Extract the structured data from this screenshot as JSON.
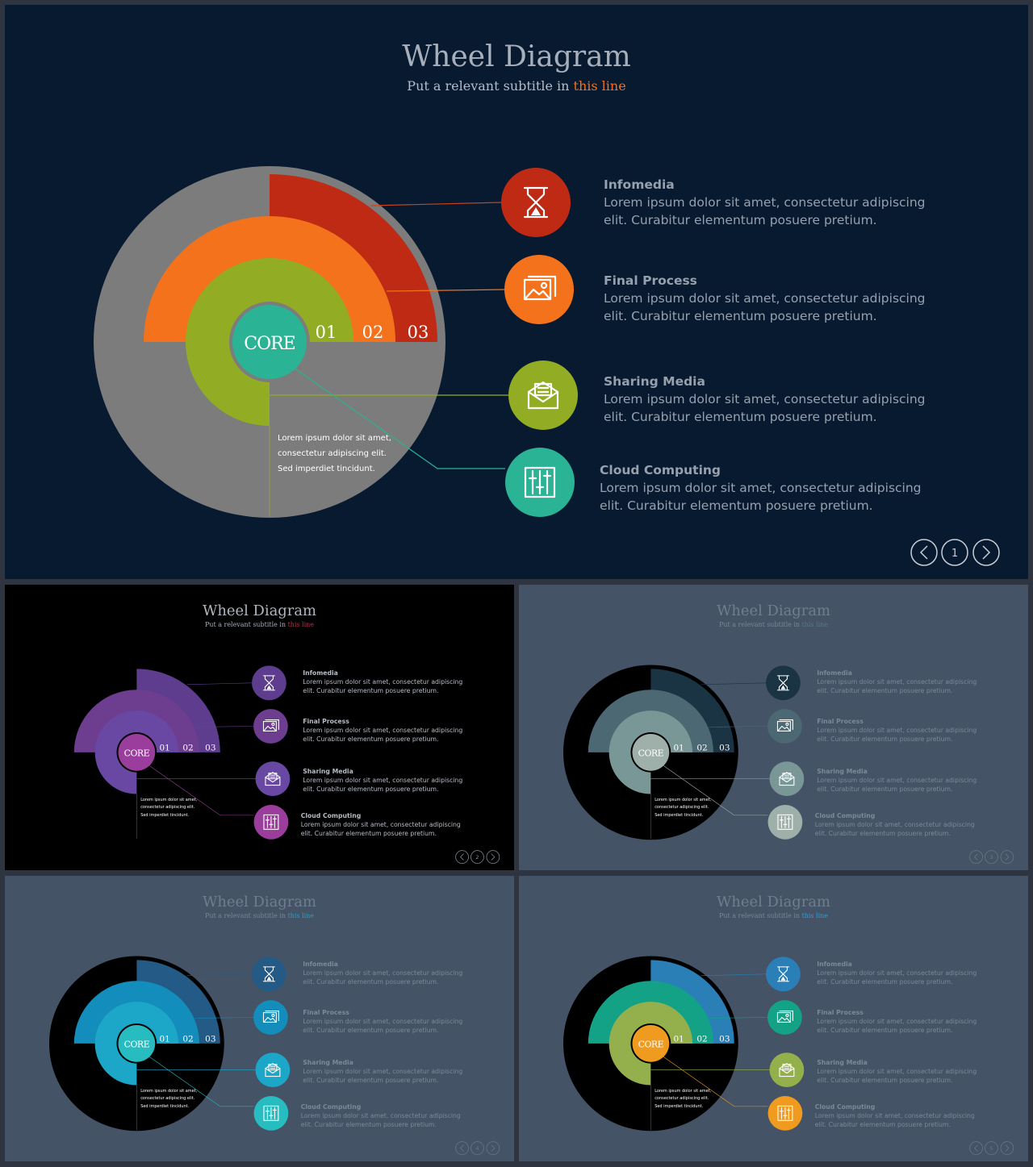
{
  "title": "Wheel Diagram",
  "subtitle_prefix": "Put a relevant subtitle in",
  "subtitle_highlight": "this line",
  "core_label": "CORE",
  "ring_numbers": [
    "01",
    "02",
    "03"
  ],
  "center_text": [
    "Lorem ipsum dolor sit amet,",
    "consectetur adipiscing elit.",
    "Sed imperdiet tincidunt."
  ],
  "items": [
    {
      "title": "Infomedia",
      "desc1": "Lorem ipsum dolor sit amet, consectetur adipiscing",
      "desc2": "elit. Curabitur elementum posuere pretium.",
      "icon": "hourglass-icon"
    },
    {
      "title": "Final Process",
      "desc1": "Lorem ipsum dolor sit amet, consectetur adipiscing",
      "desc2": "elit. Curabitur elementum posuere pretium.",
      "icon": "image-icon"
    },
    {
      "title": "Sharing Media",
      "desc1": "Lorem ipsum dolor sit amet, consectetur adipiscing",
      "desc2": "elit. Curabitur elementum posuere pretium.",
      "icon": "envelope-icon"
    },
    {
      "title": "Cloud Computing",
      "desc1": "Lorem ipsum dolor sit amet, consectetur adipiscing",
      "desc2": "elit. Curabitur elementum posuere pretium.",
      "icon": "sliders-icon"
    }
  ],
  "slides": [
    {
      "page": "1",
      "bg": "#081a30",
      "disk": "#7c7c7c",
      "ring_border": "#7c7c7c",
      "colors": [
        "#bf2a14",
        "#f4721b",
        "#92ac23",
        "#2ab394"
      ],
      "title_color": "#a6afbb",
      "sub_color": "#b6bcc7",
      "highlight_color": "#f2701e",
      "text_color": "#97a1ad",
      "nav_color": "#c9ced6"
    },
    {
      "page": "2",
      "bg": "#000000",
      "disk": "#000000",
      "ring_border": "#000000",
      "colors": [
        "#5e3d8e",
        "#6d3e90",
        "#6948a4",
        "#9a3d9c"
      ],
      "title_color": "#b0b6bf",
      "sub_color": "#a6adb6",
      "highlight_color": "#b2344a",
      "text_color": "#b6bcc5",
      "nav_color": "#8a9099"
    },
    {
      "page": "3",
      "bg": "#455366",
      "disk": "#000000",
      "ring_border": "#000000",
      "colors": [
        "#1b3444",
        "#4b6873",
        "#7a9797",
        "#9eb0a9"
      ],
      "title_color": "#707d8d",
      "sub_color": "#7a8696",
      "highlight_color": "#5a7685",
      "text_color": "#7b8898",
      "nav_color": "#6c7888"
    },
    {
      "page": "4",
      "bg": "#455366",
      "disk": "#000000",
      "ring_border": "#000000",
      "colors": [
        "#245a86",
        "#138dbb",
        "#1ca7c9",
        "#26bcc0"
      ],
      "title_color": "#707d8d",
      "sub_color": "#7a8696",
      "highlight_color": "#1ea2c7",
      "text_color": "#7b8898",
      "nav_color": "#6c7888"
    },
    {
      "page": "5",
      "bg": "#455366",
      "disk": "#000000",
      "ring_border": "#000000",
      "colors": [
        "#2b7fb7",
        "#14a287",
        "#94b04c",
        "#ee9b1f"
      ],
      "title_color": "#707d8d",
      "sub_color": "#7a8696",
      "highlight_color": "#2b9fd5",
      "text_color": "#7b8898",
      "nav_color": "#6c7888"
    }
  ]
}
